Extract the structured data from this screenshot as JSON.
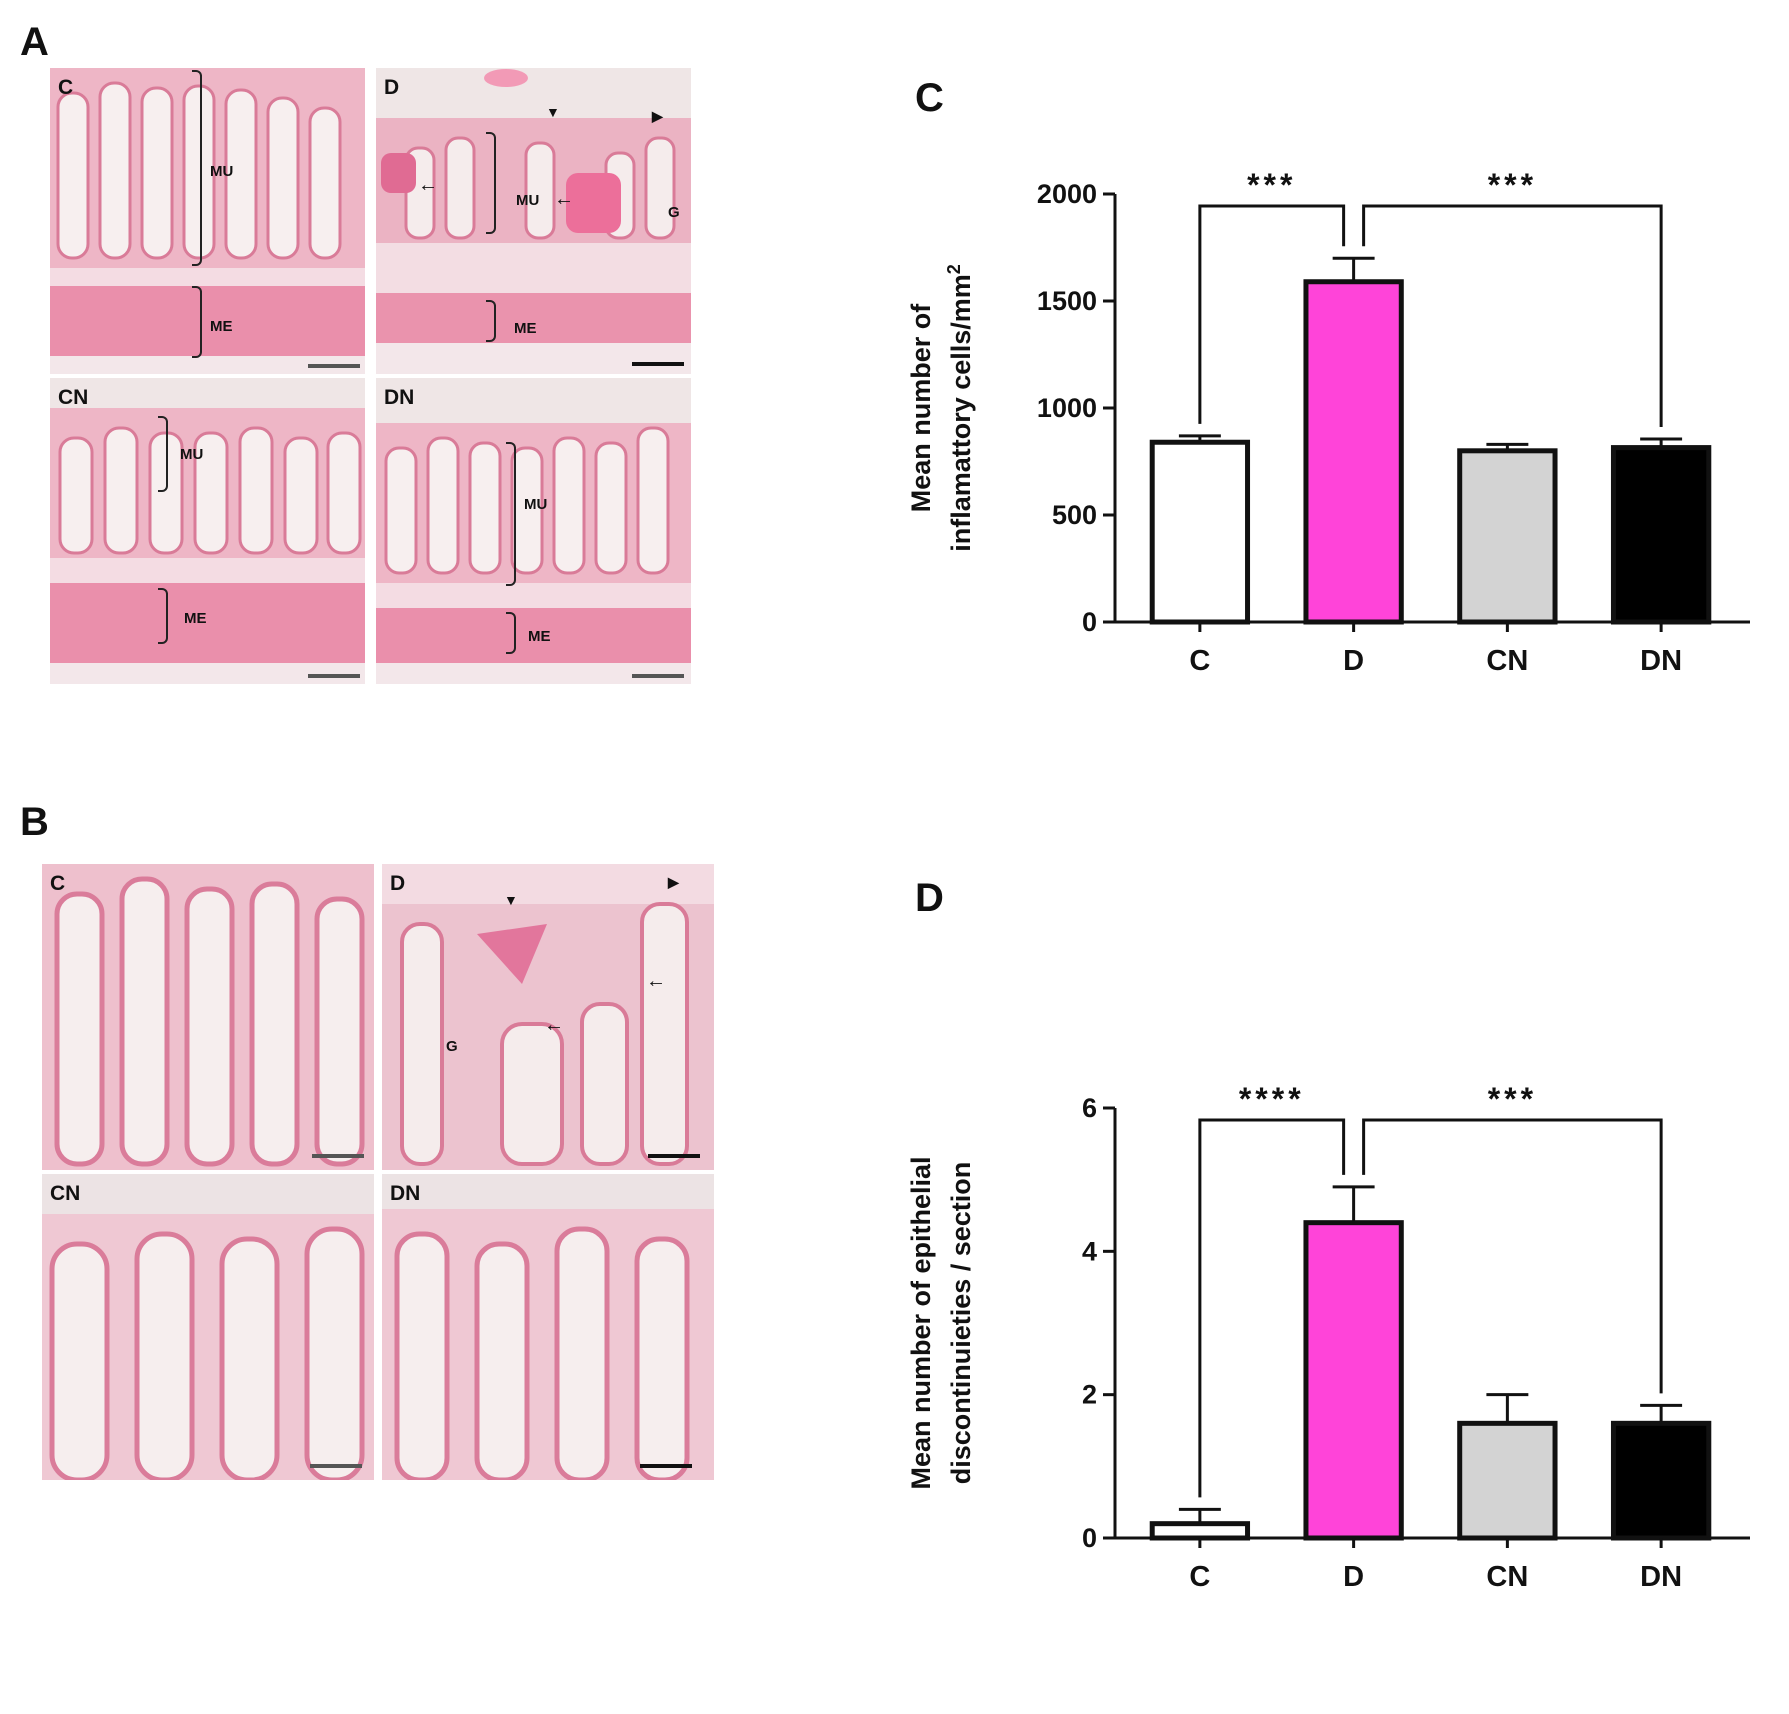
{
  "panels": {
    "a_letter": "A",
    "b_letter": "B",
    "c_letter": "C",
    "d_letter": "D"
  },
  "micro_panel_a": [
    {
      "label": "C",
      "annotations": [
        "MU",
        "ME"
      ]
    },
    {
      "label": "D",
      "annotations": [
        "MU",
        "ME",
        "G"
      ]
    },
    {
      "label": "CN",
      "annotations": [
        "MU",
        "ME"
      ]
    },
    {
      "label": "DN",
      "annotations": [
        "MU",
        "ME"
      ]
    }
  ],
  "micro_panel_b": [
    {
      "label": "C",
      "annotations": []
    },
    {
      "label": "D",
      "annotations": [
        "G"
      ]
    },
    {
      "label": "CN",
      "annotations": []
    },
    {
      "label": "DN",
      "annotations": []
    }
  ],
  "stain_colors": {
    "tissue": "#e98aa6",
    "lumen": "#f4ecec",
    "muscle": "#ea8fab",
    "background": "#efe6e6"
  },
  "chart_data": [
    {
      "type": "bar",
      "panel": "C",
      "categories": [
        "C",
        "D",
        "CN",
        "DN"
      ],
      "values": [
        840,
        1590,
        800,
        815
      ],
      "errors": [
        30,
        110,
        30,
        40
      ],
      "colors": [
        "#ffffff",
        "#ff44d9",
        "#d3d3d3",
        "#000000"
      ],
      "ylabel_lines": [
        "Mean number of",
        "inflamattory cells/mm"
      ],
      "ylabel_superscript": "2",
      "ylim": [
        0,
        2000
      ],
      "yticks": [
        0,
        500,
        1000,
        1500,
        2000
      ],
      "significance": [
        {
          "from": 0,
          "to": 1,
          "label": "***"
        },
        {
          "from": 1,
          "to": 3,
          "label": "***"
        }
      ]
    },
    {
      "type": "bar",
      "panel": "D",
      "categories": [
        "C",
        "D",
        "CN",
        "DN"
      ],
      "values": [
        0.2,
        4.4,
        1.6,
        1.6
      ],
      "errors": [
        0.2,
        0.5,
        0.4,
        0.25
      ],
      "colors": [
        "#ffffff",
        "#ff44d9",
        "#d3d3d3",
        "#000000"
      ],
      "ylabel_lines": [
        "Mean number of  epithelial",
        "discontinuieties / section"
      ],
      "ylabel_superscript": "",
      "ylim": [
        0,
        6
      ],
      "yticks": [
        0,
        2,
        4,
        6
      ],
      "significance": [
        {
          "from": 0,
          "to": 1,
          "label": "****"
        },
        {
          "from": 1,
          "to": 3,
          "label": "***"
        }
      ]
    }
  ]
}
